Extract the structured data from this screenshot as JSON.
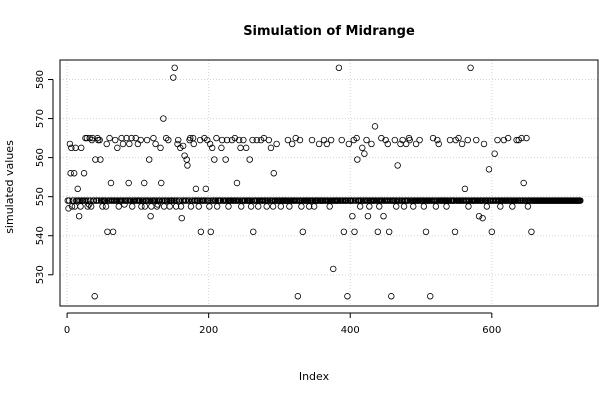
{
  "chart_data": {
    "type": "scatter",
    "title": "Simulation of Midrange",
    "xlabel": "Index",
    "ylabel": "simulated values",
    "xlim": [
      -10,
      750
    ],
    "ylim": [
      522,
      585
    ],
    "x_ticks": [
      0,
      200,
      400,
      600
    ],
    "y_ticks": [
      530,
      540,
      550,
      560,
      570,
      580
    ],
    "grid": true,
    "marker": "open-circle",
    "series": [
      {
        "n": 735,
        "x_start": 1,
        "values": [
          549,
          547,
          549,
          563.5,
          556,
          562.5,
          547.5,
          549,
          549,
          556,
          547.5,
          562.5,
          549,
          549,
          552,
          549,
          545,
          549,
          547.5,
          562.5,
          549,
          549,
          549,
          556,
          549,
          565,
          549,
          565,
          547.5,
          549,
          548,
          565,
          549,
          547.5,
          564.5,
          565,
          549,
          549,
          524.5,
          559.5,
          549,
          549,
          565,
          564.5,
          549,
          564.5,
          559.5,
          549,
          549,
          547.5,
          549,
          549,
          549,
          549,
          547.5,
          563.5,
          541,
          549,
          549,
          565,
          549,
          553.5,
          549,
          549,
          541,
          549,
          549,
          564.5,
          549,
          549,
          562.5,
          549,
          547.5,
          549,
          549,
          549,
          565,
          549,
          563.5,
          549,
          548,
          549,
          549,
          565,
          549,
          549,
          553.5,
          563.5,
          549,
          549,
          565,
          547.5,
          549,
          549,
          549,
          549,
          565,
          549,
          549,
          563.5,
          549,
          549,
          549,
          564.5,
          547.5,
          549,
          549,
          549,
          553.5,
          547.5,
          549,
          549,
          564.5,
          549,
          549,
          559.5,
          549,
          545,
          547.5,
          549,
          549,
          565,
          549,
          549,
          563.5,
          549,
          547.5,
          548,
          549,
          549,
          549,
          562.5,
          553.5,
          549,
          549,
          570,
          547.5,
          549,
          549,
          565,
          549,
          549,
          564.5,
          549,
          547.5,
          549,
          549,
          549,
          549,
          580.5,
          549,
          583,
          549,
          547.5,
          549,
          563.5,
          564.5,
          549,
          549,
          562.5,
          547.5,
          544.5,
          549,
          563,
          549,
          560.5,
          549,
          549,
          559.5,
          558,
          549,
          549,
          564.5,
          565,
          547.5,
          549,
          549,
          565,
          563.5,
          549,
          549,
          552,
          549,
          549,
          549,
          547.5,
          549,
          564.5,
          541,
          549,
          549,
          549,
          549,
          565,
          549,
          552,
          549,
          564.5,
          549,
          549,
          547.5,
          563.5,
          541,
          549,
          562.5,
          549,
          549,
          559.5,
          549,
          549,
          565,
          547.5,
          549,
          549,
          549,
          549,
          549,
          562.5,
          564.5,
          549,
          549,
          549,
          549,
          559.5,
          549,
          564.5,
          549,
          547.5,
          549,
          549,
          549,
          549,
          564.5,
          549,
          549,
          549,
          565,
          549,
          549,
          553.5,
          549,
          549,
          564.5,
          549,
          562.5,
          547.5,
          549,
          549,
          564.5,
          549,
          549,
          549,
          562.5,
          549,
          549,
          549,
          549,
          559.5,
          549,
          547.5,
          549,
          564.5,
          541,
          549,
          549,
          549,
          549,
          564.5,
          549,
          547.5,
          549,
          549,
          549,
          564.5,
          549,
          549,
          549,
          565,
          549,
          549,
          549,
          547.5,
          549,
          549,
          564.5,
          549,
          549,
          562.5,
          549,
          549,
          547.5,
          556,
          549,
          549,
          549,
          563.5,
          549,
          549,
          549,
          549,
          549,
          547.5,
          549,
          549,
          549,
          549,
          549,
          549,
          549,
          549,
          549,
          564.5,
          549,
          547.5,
          549,
          549,
          549,
          563.5,
          549,
          549,
          549,
          549,
          565,
          549,
          549,
          524.5,
          549,
          549,
          564.5,
          549,
          547.5,
          549,
          541,
          549,
          549,
          549,
          549,
          549,
          549,
          549,
          549,
          547.5,
          549,
          549,
          549,
          564.5,
          549,
          549,
          547.5,
          549,
          549,
          549,
          549,
          549,
          549,
          563.5,
          549,
          549,
          549,
          549,
          549,
          549,
          564.5,
          549,
          549,
          549,
          563.5,
          549,
          549,
          549,
          547.5,
          549,
          564.5,
          549,
          549,
          531.5,
          549,
          549,
          549,
          549,
          549,
          549,
          549,
          583,
          549,
          549,
          549,
          564.5,
          549,
          549,
          541,
          549,
          549,
          549,
          549,
          524.5,
          549,
          563.5,
          549,
          549,
          549,
          549,
          545,
          549,
          564.5,
          541,
          549,
          549,
          565,
          559.5,
          549,
          549,
          549,
          547.5,
          549,
          549,
          562.5,
          549,
          549,
          561,
          549,
          549,
          564.5,
          549,
          545,
          549,
          547.5,
          549,
          549,
          563.5,
          549,
          549,
          549,
          549,
          568,
          549,
          549,
          549,
          541,
          549,
          547.5,
          549,
          549,
          565,
          549,
          549,
          545,
          549,
          549,
          564.5,
          549,
          549,
          563.5,
          549,
          541,
          549,
          549,
          524.5,
          549,
          549,
          549,
          549,
          564.5,
          549,
          547.5,
          549,
          558,
          549,
          549,
          549,
          563.5,
          549,
          549,
          564.5,
          549,
          547.5,
          549,
          549,
          563.5,
          549,
          549,
          549,
          565,
          564.5,
          549,
          549,
          549,
          549,
          547.5,
          549,
          549,
          549,
          563.5,
          549,
          549,
          549,
          549,
          564.5,
          549,
          549,
          549,
          549,
          549,
          547.5,
          549,
          549,
          541,
          549,
          549,
          549,
          549,
          549,
          524.5,
          549,
          549,
          549,
          565,
          549,
          549,
          549,
          547.5,
          549,
          564.5,
          549,
          563.5,
          549,
          549,
          549,
          549,
          549,
          549,
          549,
          549,
          549,
          549,
          547.5,
          549,
          549,
          549,
          549,
          564.5,
          549,
          549,
          549,
          549,
          549,
          549,
          541,
          564.5,
          549,
          549,
          549,
          565,
          549,
          549,
          549,
          549,
          563.5,
          549,
          549,
          549,
          552,
          549,
          549,
          549,
          564.5,
          547.5,
          549,
          549,
          583,
          549,
          549,
          549,
          549,
          549,
          549,
          549,
          564.5,
          549,
          549,
          549,
          545,
          549,
          549,
          549,
          549,
          544.5,
          549,
          563.5,
          549,
          549,
          549,
          547.5,
          549,
          549,
          557,
          549,
          549,
          549,
          541,
          549,
          549,
          549,
          561,
          549,
          549,
          549,
          564.5,
          549,
          549,
          549,
          547.5,
          549,
          549,
          549,
          549,
          564.5,
          549,
          549,
          549,
          549,
          549,
          565,
          549,
          549,
          549,
          549,
          549,
          547.5,
          549,
          549,
          549,
          549,
          549,
          564.5,
          549,
          549,
          564.5,
          549,
          549,
          549,
          565,
          549,
          549,
          553.5,
          549,
          549,
          549,
          565,
          549,
          547.5,
          549,
          549,
          549,
          549,
          541,
          549,
          549,
          549,
          549,
          549,
          549,
          549,
          549,
          549,
          549,
          549,
          549,
          549,
          549,
          549,
          549,
          549,
          549,
          549,
          549,
          549,
          549,
          549,
          549,
          549,
          549,
          549,
          549,
          549,
          549,
          549,
          549,
          549,
          549,
          549,
          549,
          549,
          549,
          549,
          549,
          549,
          549,
          549,
          549,
          549,
          549,
          549,
          549,
          549,
          549,
          549,
          549,
          549,
          549,
          549,
          549,
          549,
          549,
          549,
          549,
          549,
          549,
          549,
          549,
          549,
          549,
          549,
          549,
          549
        ]
      }
    ]
  }
}
